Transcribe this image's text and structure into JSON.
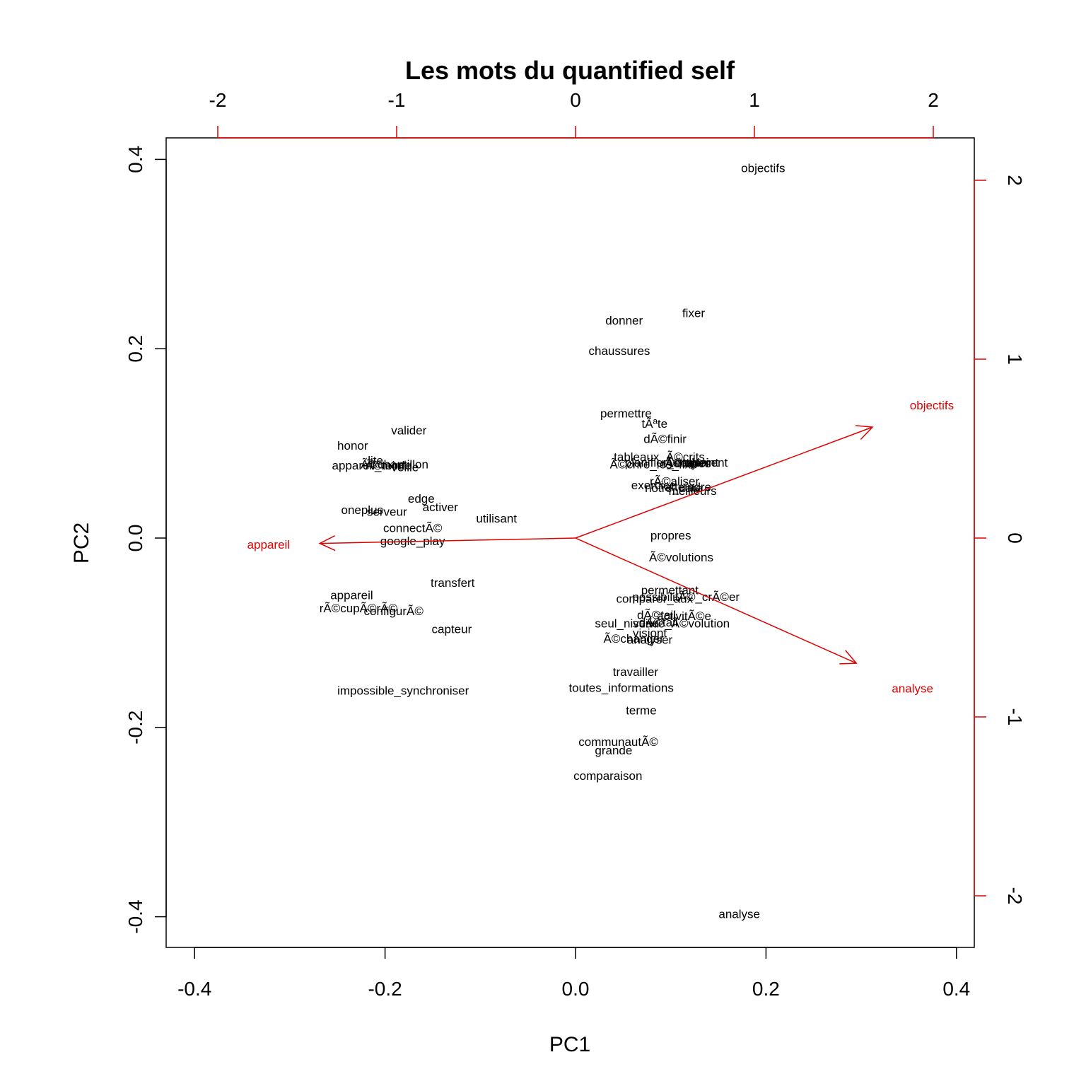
{
  "chart_data": {
    "type": "scatter",
    "title": "Les mots du quantified self",
    "xlabel": "PC1",
    "ylabel": "PC2",
    "xlim": [
      -0.43,
      0.43
    ],
    "ylim": [
      -0.43,
      0.43
    ],
    "xticks": [
      "-0.4",
      "-0.2",
      "0.0",
      "0.2",
      "0.4"
    ],
    "yticks": [
      "-0.4",
      "-0.2",
      "0.0",
      "0.2",
      "0.4"
    ],
    "top_ticks": [
      "-2",
      "-1",
      "0",
      "1",
      "2"
    ],
    "right_ticks": [
      "-2",
      "-1",
      "0",
      "1",
      "2"
    ],
    "points": [
      {
        "label": "objectifs",
        "x": 0.197,
        "y": 0.391
      },
      {
        "label": "fixer",
        "x": 0.124,
        "y": 0.238
      },
      {
        "label": "donner",
        "x": 0.051,
        "y": 0.23
      },
      {
        "label": "chaussures",
        "x": 0.046,
        "y": 0.198
      },
      {
        "label": "permettre",
        "x": 0.053,
        "y": 0.132
      },
      {
        "label": "tÃªte",
        "x": 0.083,
        "y": 0.121
      },
      {
        "label": "dÃ©finir",
        "x": 0.094,
        "y": 0.105
      },
      {
        "label": "tableaux_Ã©crits",
        "x": 0.088,
        "y": 0.086
      },
      {
        "label": "atteint",
        "x": 0.133,
        "y": 0.08
      },
      {
        "label": "planifier_emploi",
        "x": 0.096,
        "y": 0.08
      },
      {
        "label": "rÃ©ellement",
        "x": 0.125,
        "y": 0.08
      },
      {
        "label": "Ã©crire_les_fixe",
        "x": 0.082,
        "y": 0.078
      },
      {
        "label": "Ã©tapes",
        "x": 0.118,
        "y": 0.079
      },
      {
        "label": "rÃ©aliser",
        "x": 0.104,
        "y": 0.06
      },
      {
        "label": "exercice",
        "x": 0.082,
        "y": 0.056
      },
      {
        "label": "notre_date",
        "x": 0.103,
        "y": 0.053
      },
      {
        "label": "atteindre",
        "x": 0.118,
        "y": 0.054
      },
      {
        "label": "meilleurs",
        "x": 0.123,
        "y": 0.05
      },
      {
        "label": "valider",
        "x": -0.175,
        "y": 0.114
      },
      {
        "label": "honor",
        "x": -0.234,
        "y": 0.098
      },
      {
        "label": "lite",
        "x": -0.21,
        "y": 0.082
      },
      {
        "label": "appareil_mode",
        "x": -0.214,
        "y": 0.077
      },
      {
        "label": "Ã©chantillon",
        "x": -0.19,
        "y": 0.078
      },
      {
        "label": "Ã©teint",
        "x": -0.2,
        "y": 0.077
      },
      {
        "label": "veille",
        "x": -0.179,
        "y": 0.075
      },
      {
        "label": "edge",
        "x": -0.162,
        "y": 0.042
      },
      {
        "label": "activer",
        "x": -0.142,
        "y": 0.033
      },
      {
        "label": "oneplus",
        "x": -0.224,
        "y": 0.03
      },
      {
        "label": "serveur",
        "x": -0.198,
        "y": 0.028
      },
      {
        "label": "utilisant",
        "x": -0.083,
        "y": 0.021
      },
      {
        "label": "connectÃ©",
        "x": -0.171,
        "y": 0.011
      },
      {
        "label": "google_play",
        "x": -0.171,
        "y": -0.003
      },
      {
        "label": "transfert",
        "x": -0.129,
        "y": -0.047
      },
      {
        "label": "appareil",
        "x": -0.235,
        "y": -0.06
      },
      {
        "label": "rÃ©cupÃ©rÃ©",
        "x": -0.228,
        "y": -0.074
      },
      {
        "label": "configurÃ©",
        "x": -0.191,
        "y": -0.077
      },
      {
        "label": "capteur",
        "x": -0.13,
        "y": -0.096
      },
      {
        "label": "impossible_synchroniser",
        "x": -0.181,
        "y": -0.161
      },
      {
        "label": "propres",
        "x": 0.1,
        "y": 0.003
      },
      {
        "label": "Ã©volutions",
        "x": 0.111,
        "y": -0.02
      },
      {
        "label": "permettant",
        "x": 0.099,
        "y": -0.055
      },
      {
        "label": "possibilitÃ©_crÃ©er",
        "x": 0.116,
        "y": -0.062
      },
      {
        "label": "comparer_aux",
        "x": 0.083,
        "y": -0.064
      },
      {
        "label": "dÃ©tail",
        "x": 0.085,
        "y": -0.081
      },
      {
        "label": "activitÃ©e",
        "x": 0.114,
        "y": -0.082
      },
      {
        "label": "seul_niveau",
        "x": 0.054,
        "y": -0.09
      },
      {
        "label": "suivre_Ã©volution",
        "x": 0.111,
        "y": -0.09
      },
      {
        "label": "dÃ©tail",
        "x": 0.087,
        "y": -0.089
      },
      {
        "label": "visiont",
        "x": 0.078,
        "y": -0.1
      },
      {
        "label": "Ã©changer",
        "x": 0.061,
        "y": -0.106
      },
      {
        "label": "analyser",
        "x": 0.078,
        "y": -0.107
      },
      {
        "label": "travailler",
        "x": 0.063,
        "y": -0.141
      },
      {
        "label": "toutes_informations",
        "x": 0.048,
        "y": -0.158
      },
      {
        "label": "terme",
        "x": 0.069,
        "y": -0.182
      },
      {
        "label": "communautÃ©",
        "x": 0.045,
        "y": -0.215
      },
      {
        "label": "grande",
        "x": 0.04,
        "y": -0.224
      },
      {
        "label": "comparaison",
        "x": 0.034,
        "y": -0.251
      },
      {
        "label": "analyse",
        "x": 0.172,
        "y": -0.397
      }
    ],
    "loadings": [
      {
        "label": "objectifs",
        "x": 1.66,
        "y": 0.62
      },
      {
        "label": "appareil",
        "x": -1.43,
        "y": -0.03
      },
      {
        "label": "analyse",
        "x": 1.57,
        "y": -0.7
      }
    ],
    "loadings_lim": [
      -2.2,
      2.2
    ],
    "colors": {
      "points": "#000000",
      "loadings": "#e00000"
    },
    "grid": false,
    "legend": "none"
  }
}
